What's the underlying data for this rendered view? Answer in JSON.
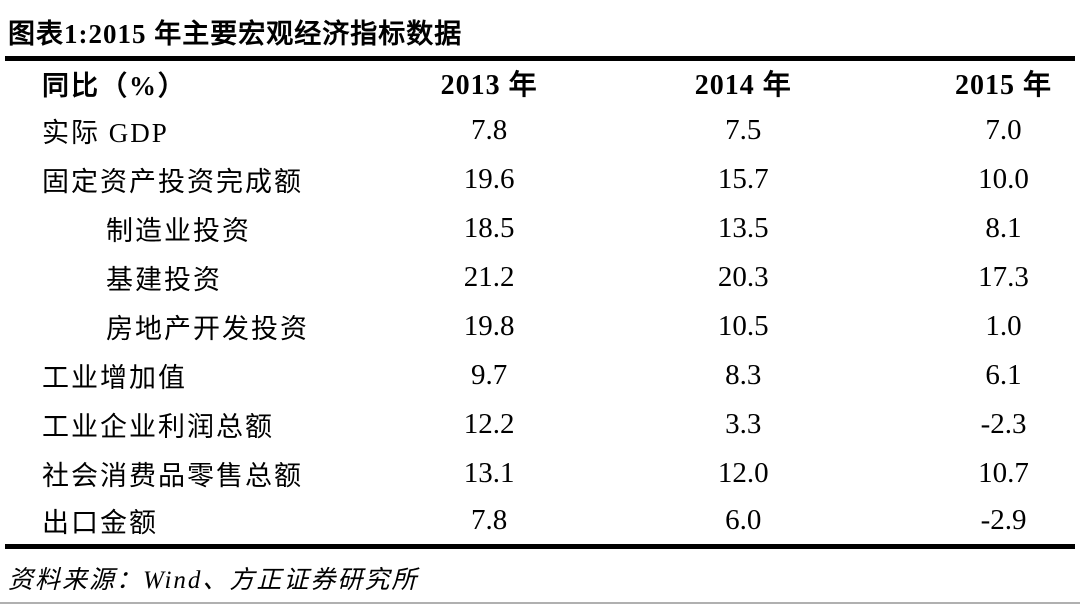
{
  "title": "图表1:2015 年主要宏观经济指标数据",
  "chart_data": {
    "type": "table",
    "title": "图表1:2015 年主要宏观经济指标数据",
    "columns": [
      "同比（%）",
      "2013 年",
      "2014 年",
      "2015 年"
    ],
    "rows": [
      {
        "indicator": "实际 GDP",
        "indent": 0,
        "values": [
          "7.8",
          "7.5",
          "7.0"
        ]
      },
      {
        "indicator": "固定资产投资完成额",
        "indent": 0,
        "values": [
          "19.6",
          "15.7",
          "10.0"
        ]
      },
      {
        "indicator": "制造业投资",
        "indent": 1,
        "values": [
          "18.5",
          "13.5",
          "8.1"
        ]
      },
      {
        "indicator": "基建投资",
        "indent": 1,
        "values": [
          "21.2",
          "20.3",
          "17.3"
        ]
      },
      {
        "indicator": "房地产开发投资",
        "indent": 1,
        "values": [
          "19.8",
          "10.5",
          "1.0"
        ]
      },
      {
        "indicator": "工业增加值",
        "indent": 0,
        "values": [
          "9.7",
          "8.3",
          "6.1"
        ]
      },
      {
        "indicator": "工业企业利润总额",
        "indent": 0,
        "values": [
          "12.2",
          "3.3",
          "-2.3"
        ]
      },
      {
        "indicator": "社会消费品零售总额",
        "indent": 0,
        "values": [
          "13.1",
          "12.0",
          "10.7"
        ]
      },
      {
        "indicator": "出口金额",
        "indent": 0,
        "values": [
          "7.8",
          "6.0",
          "-2.9"
        ]
      }
    ]
  },
  "source": "资料来源：Wind、方正证券研究所",
  "colors": {
    "text": "#000000",
    "table_rule": "#000000",
    "bottom_divider": "#b0b0b0",
    "background": "#ffffff"
  }
}
